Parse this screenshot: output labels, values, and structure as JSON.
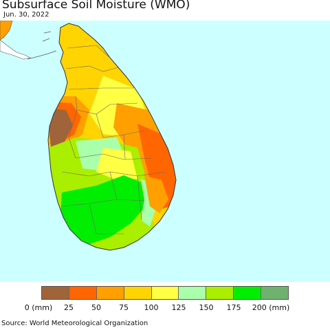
{
  "title": "Subsurface Soil Moisture (WMO)",
  "date": "Jun. 30, 2022",
  "legend": {
    "colors": [
      "#a0643a",
      "#ff6600",
      "#ffa000",
      "#ffd400",
      "#ffff44",
      "#aaffaa",
      "#aaee00",
      "#00ee00",
      "#6fb26f"
    ],
    "labels": [
      "0 (mm)",
      "25",
      "50",
      "75",
      "100",
      "125",
      "150",
      "175",
      "200 (mm)"
    ]
  },
  "source": "Source: World Meteorological Organization",
  "colors": {
    "ocean": "#ccffff",
    "borders": "#555555"
  }
}
